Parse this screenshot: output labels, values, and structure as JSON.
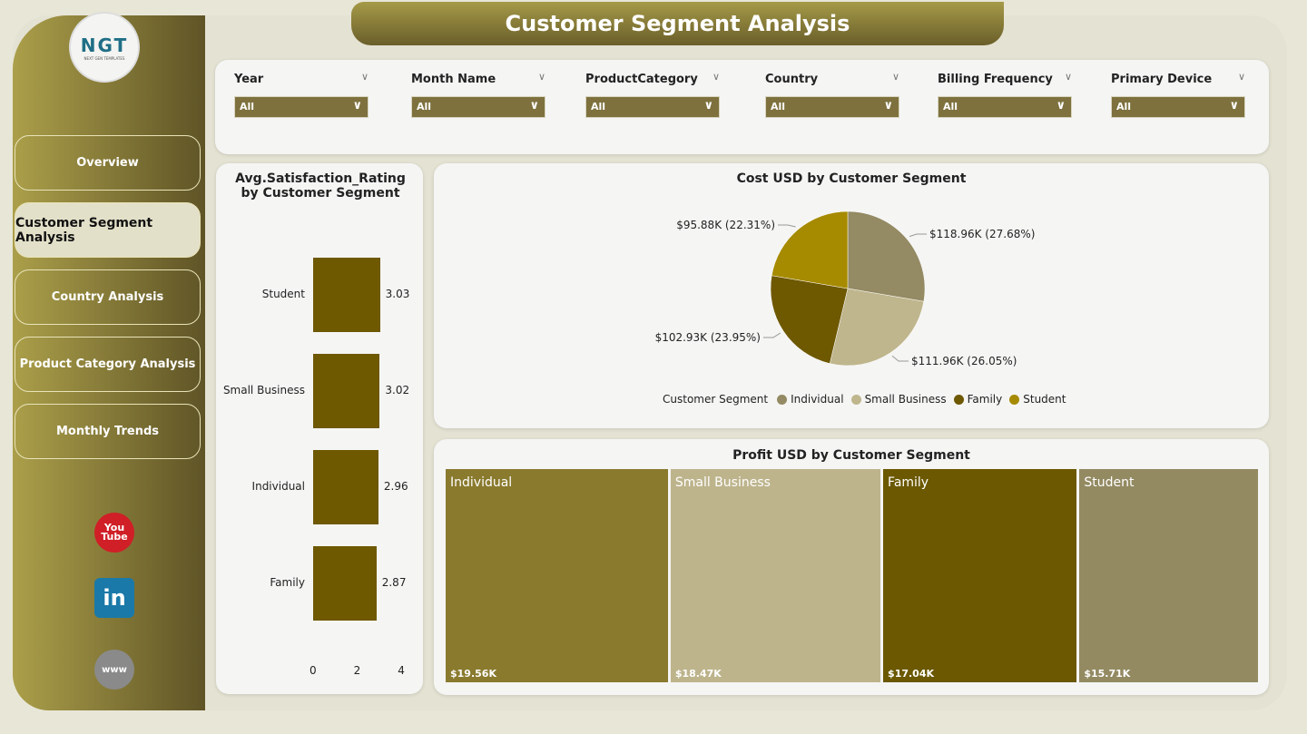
{
  "header": {
    "title": "Customer Segment Analysis"
  },
  "logo": {
    "text": "NGT",
    "subtext": "NEXT GEN TEMPLATES"
  },
  "sidebar": {
    "items": [
      {
        "label": "Overview"
      },
      {
        "label": "Customer Segment Analysis",
        "active": true
      },
      {
        "label": "Country Analysis"
      },
      {
        "label": "Product Category Analysis"
      },
      {
        "label": "Monthly Trends"
      }
    ],
    "social": [
      {
        "icon": "youtube-icon",
        "label": "You Tube"
      },
      {
        "icon": "linkedin-icon",
        "label": "in"
      },
      {
        "icon": "globe-icon",
        "label": "www"
      }
    ]
  },
  "filters": [
    {
      "label": "Year",
      "value": "All"
    },
    {
      "label": "Month Name",
      "value": "All"
    },
    {
      "label": "ProductCategory",
      "value": "All"
    },
    {
      "label": "Country",
      "value": "All"
    },
    {
      "label": "Billing Frequency",
      "value": "All"
    },
    {
      "label": "Primary Device",
      "value": "All"
    }
  ],
  "colors": {
    "Individual": "#948a63",
    "Small Business": "#bfb68d",
    "Family": "#6e5800",
    "Student": "#a68a00",
    "bar": "#6e5800",
    "treemap": [
      "#8a7a2e",
      "#bdb48c",
      "#6b5800",
      "#938a62"
    ]
  },
  "chart_data": [
    {
      "type": "bar",
      "orientation": "horizontal",
      "title": "Avg.Satisfaction_Rating by Customer Segment",
      "categories": [
        "Student",
        "Small Business",
        "Individual",
        "Family"
      ],
      "values": [
        3.03,
        3.02,
        2.96,
        2.87
      ],
      "value_labels": [
        "3.03",
        "3.02",
        "2.96",
        "2.87"
      ],
      "xticks": [
        "0",
        "2",
        "4"
      ],
      "xlim": [
        0,
        4
      ]
    },
    {
      "type": "pie",
      "title": "Cost USD by Customer Segment",
      "legend_title": "Customer Segment",
      "legend_position": "bottom",
      "categories": [
        "Individual",
        "Small Business",
        "Family",
        "Student"
      ],
      "values": [
        118.96,
        111.96,
        102.93,
        95.88
      ],
      "labels": [
        "$118.96K (27.68%)",
        "$111.96K (26.05%)",
        "$102.93K (23.95%)",
        "$95.88K (22.31%)"
      ]
    },
    {
      "type": "treemap",
      "title": "Profit USD by Customer Segment",
      "categories": [
        "Individual",
        "Small Business",
        "Family",
        "Student"
      ],
      "values": [
        19.56,
        18.47,
        17.04,
        15.71
      ],
      "labels": [
        "$19.56K",
        "$18.47K",
        "$17.04K",
        "$15.71K"
      ]
    }
  ]
}
